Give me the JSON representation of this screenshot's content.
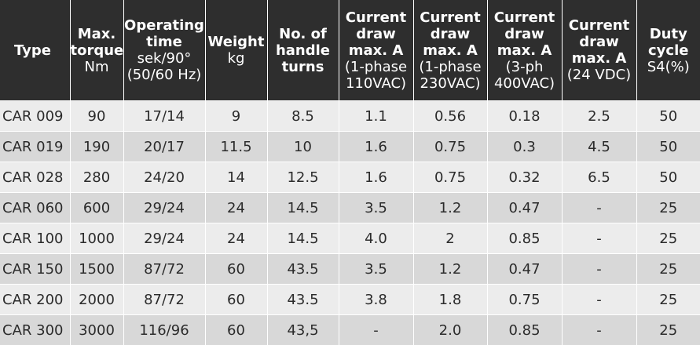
{
  "headers": [
    {
      "bold": [
        "Type"
      ],
      "normal": []
    },
    {
      "bold": [
        "Max.",
        "torque"
      ],
      "normal": [
        "Nm"
      ]
    },
    {
      "bold": [
        "Operating",
        "time"
      ],
      "normal": [
        "sek/90°",
        "(50/60 Hz)"
      ]
    },
    {
      "bold": [
        "Weight"
      ],
      "normal": [
        "kg"
      ]
    },
    {
      "bold": [
        "No. of",
        "handle",
        "turns"
      ],
      "normal": []
    },
    {
      "bold": [
        "Current",
        "draw",
        "max. A"
      ],
      "normal": [
        "(1-phase",
        "110VAC)"
      ]
    },
    {
      "bold": [
        "Current",
        "draw",
        "max. A"
      ],
      "normal": [
        "(1-phase",
        "230VAC)"
      ]
    },
    {
      "bold": [
        "Current",
        "draw",
        "max. A"
      ],
      "normal": [
        "(3-ph",
        "400VAC)"
      ]
    },
    {
      "bold": [
        "Current",
        "draw",
        "max. A"
      ],
      "normal": [
        "(24 VDC)"
      ]
    },
    {
      "bold": [
        "Duty",
        "cycle"
      ],
      "normal": [
        "S4(%)"
      ]
    }
  ],
  "rows": [
    [
      "CAR 009",
      "90",
      "17/14",
      "9",
      "8.5",
      "1.1",
      "0.56",
      "0.18",
      "2.5",
      "50"
    ],
    [
      "CAR 019",
      "190",
      "20/17",
      "11.5",
      "10",
      "1.6",
      "0.75",
      "0.3",
      "4.5",
      "50"
    ],
    [
      "CAR 028",
      "280",
      "24/20",
      "14",
      "12.5",
      "1.6",
      "0.75",
      "0.32",
      "6.5",
      "50"
    ],
    [
      "CAR 060",
      "600",
      "29/24",
      "24",
      "14.5",
      "3.5",
      "1.2",
      "0.47",
      "-",
      "25"
    ],
    [
      "CAR 100",
      "1000",
      "29/24",
      "24",
      "14.5",
      "4.0",
      "2",
      "0.85",
      "-",
      "25"
    ],
    [
      "CAR 150",
      "1500",
      "87/72",
      "60",
      "43.5",
      "3.5",
      "1.2",
      "0.47",
      "-",
      "25"
    ],
    [
      "CAR 200",
      "2000",
      "87/72",
      "60",
      "43.5",
      "3.8",
      "1.8",
      "0.75",
      "-",
      "25"
    ],
    [
      "CAR 300",
      "3000",
      "116/96",
      "60",
      "43,5",
      "-",
      "2.0",
      "0.85",
      "-",
      "25"
    ]
  ],
  "colors": {
    "header_bg": "#2e2e2e",
    "row_light": "#ececec",
    "row_dark": "#d8d8d8"
  }
}
